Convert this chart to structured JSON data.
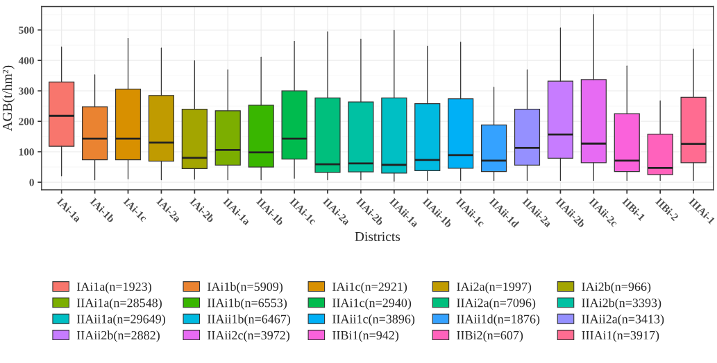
{
  "chart_data": {
    "type": "box",
    "xlabel": "Districts",
    "ylabel": "AGB(t/hm²)",
    "categories": [
      "IAi-1a",
      "IAi-1b",
      "IAi-1c",
      "IAi-2a",
      "IAi-2b",
      "IIAi-1a",
      "IIAi-1b",
      "IIAi-1c",
      "IIAi-2a",
      "IIAi-2b",
      "IIAii-1a",
      "IIAii-1b",
      "IIAii-1c",
      "IIAii-1d",
      "IIAii-2a",
      "IIAii-2b",
      "IIAii-2c",
      "IIBi-1",
      "IIBi-2",
      "IIIAi-1"
    ],
    "ylim": [
      -25,
      577
    ],
    "yticks": [
      0,
      100,
      200,
      300,
      400,
      500
    ],
    "grid": true,
    "legend": "bottom",
    "series": [
      {
        "name": "IAi1a(n=1923)",
        "color": "#f8766d",
        "x": [
          "IAi-1a"
        ],
        "boxes": [
          {
            "low": 21,
            "q1": 118,
            "median": 218,
            "q3": 329,
            "high": 444
          }
        ]
      },
      {
        "name": "IAi1b(n=5909)",
        "color": "#ea8331",
        "x": [
          "IAi-1b"
        ],
        "boxes": [
          {
            "low": 8,
            "q1": 74,
            "median": 143,
            "q3": 248,
            "high": 353
          }
        ]
      },
      {
        "name": "IAi1c(n=2921)",
        "color": "#d89000",
        "x": [
          "IAi-1c"
        ],
        "boxes": [
          {
            "low": 11,
            "q1": 74,
            "median": 143,
            "q3": 306,
            "high": 472
          }
        ]
      },
      {
        "name": "IAi2a(n=1997)",
        "color": "#c09b00",
        "x": [
          "IAi-2a"
        ],
        "boxes": [
          {
            "low": 8,
            "q1": 69,
            "median": 130,
            "q3": 285,
            "high": 441
          }
        ]
      },
      {
        "name": "IAi2b(n=966)",
        "color": "#a3a500",
        "x": [
          "IAi-2b"
        ],
        "boxes": [
          {
            "low": 10,
            "q1": 45,
            "median": 80,
            "q3": 240,
            "high": 399
          }
        ]
      },
      {
        "name": "IIAi1a(n=28548)",
        "color": "#7cae00",
        "x": [
          "IIAi-1a"
        ],
        "boxes": [
          {
            "low": 8,
            "q1": 56,
            "median": 106,
            "q3": 235,
            "high": 369
          }
        ]
      },
      {
        "name": "IIAi1b(n=6553)",
        "color": "#39b600",
        "x": [
          "IIAi-1b"
        ],
        "boxes": [
          {
            "low": 8,
            "q1": 50,
            "median": 98,
            "q3": 253,
            "high": 411
          }
        ]
      },
      {
        "name": "IIAi1c(n=2940)",
        "color": "#00bb4e",
        "x": [
          "IIAi-1c"
        ],
        "boxes": [
          {
            "low": 13,
            "q1": 76,
            "median": 143,
            "q3": 300,
            "high": 463
          }
        ]
      },
      {
        "name": "IIAi2a(n=7096)",
        "color": "#00bf7d",
        "x": [
          "IIAi-2a"
        ],
        "boxes": [
          {
            "low": 8,
            "q1": 32,
            "median": 59,
            "q3": 277,
            "high": 494
          }
        ]
      },
      {
        "name": "IIAi2b(n=3393)",
        "color": "#00c1a3",
        "x": [
          "IIAi-2b"
        ],
        "boxes": [
          {
            "low": 8,
            "q1": 34,
            "median": 62,
            "q3": 264,
            "high": 470
          }
        ]
      },
      {
        "name": "IIAii1a(n=29649)",
        "color": "#00bfc4",
        "x": [
          "IIAii-1a"
        ],
        "boxes": [
          {
            "low": 3,
            "q1": 30,
            "median": 57,
            "q3": 277,
            "high": 499
          }
        ]
      },
      {
        "name": "IIAii1b(n=6467)",
        "color": "#00bae0",
        "x": [
          "IIAii-1b"
        ],
        "boxes": [
          {
            "low": 6,
            "q1": 38,
            "median": 73,
            "q3": 258,
            "high": 447
          }
        ]
      },
      {
        "name": "IIAii1c(n=3896)",
        "color": "#00b0f6",
        "x": [
          "IIAii-1c"
        ],
        "boxes": [
          {
            "low": 6,
            "q1": 46,
            "median": 89,
            "q3": 274,
            "high": 460
          }
        ]
      },
      {
        "name": "IIAii1d(n=1876)",
        "color": "#35a2ff",
        "x": [
          "IIAii-1d"
        ],
        "boxes": [
          {
            "low": 6,
            "q1": 35,
            "median": 71,
            "q3": 188,
            "high": 312
          }
        ]
      },
      {
        "name": "IIAii2a(n=3413)",
        "color": "#9590ff",
        "x": [
          "IIAii-2a"
        ],
        "boxes": [
          {
            "low": 6,
            "q1": 56,
            "median": 113,
            "q3": 240,
            "high": 369
          }
        ]
      },
      {
        "name": "IIAii2b(n=2882)",
        "color": "#c77cff",
        "x": [
          "IIAii-2b"
        ],
        "boxes": [
          {
            "low": 6,
            "q1": 79,
            "median": 157,
            "q3": 332,
            "high": 507
          }
        ]
      },
      {
        "name": "IIAii2c(n=3972)",
        "color": "#e76bf3",
        "x": [
          "IIAii-2c"
        ],
        "boxes": [
          {
            "low": 6,
            "q1": 64,
            "median": 127,
            "q3": 337,
            "high": 551
          }
        ]
      },
      {
        "name": "IIBi1(n=942)",
        "color": "#fa62db",
        "x": [
          "IIBi-1"
        ],
        "boxes": [
          {
            "low": 6,
            "q1": 35,
            "median": 71,
            "q3": 225,
            "high": 382
          }
        ]
      },
      {
        "name": "IIBi2(n=607)",
        "color": "#ff62bc",
        "x": [
          "IIBi-2"
        ],
        "boxes": [
          {
            "low": 6,
            "q1": 25,
            "median": 47,
            "q3": 158,
            "high": 267
          }
        ]
      },
      {
        "name": "IIIAi1(n=3917)",
        "color": "#ff6c91",
        "x": [
          "IIIAi-1"
        ],
        "boxes": [
          {
            "low": 6,
            "q1": 64,
            "median": 126,
            "q3": 279,
            "high": 437
          }
        ]
      }
    ]
  }
}
